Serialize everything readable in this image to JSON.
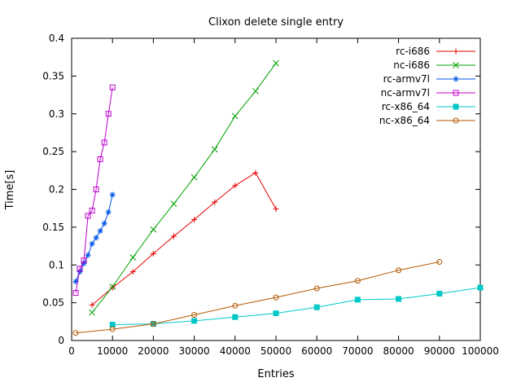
{
  "chart_data": {
    "type": "line",
    "title": "Clixon delete single entry",
    "xlabel": "Entries",
    "ylabel": "Time[s]",
    "xlim": [
      0,
      100000
    ],
    "ylim": [
      0,
      0.4
    ],
    "x_ticks": [
      0,
      10000,
      20000,
      30000,
      40000,
      50000,
      60000,
      70000,
      80000,
      90000,
      100000
    ],
    "x_tick_labels": [
      "0",
      "10000",
      "20000",
      "30000",
      "40000",
      "50000",
      "60000",
      "70000",
      "80000",
      "90000",
      "100000"
    ],
    "y_ticks": [
      0,
      0.05,
      0.1,
      0.15,
      0.2,
      0.25,
      0.3,
      0.35,
      0.4
    ],
    "y_tick_labels": [
      "0",
      "0.05",
      "0.1",
      "0.15",
      "0.2",
      "0.25",
      "0.3",
      "0.35",
      "0.4"
    ],
    "grid": false,
    "legend_position": "top-right-inside",
    "background_color": "#ffffff",
    "axis_color": "#000000",
    "series": [
      {
        "name": "rc-i686",
        "color": "#e60000",
        "marker": "plus",
        "x": [
          5000,
          10000,
          15000,
          20000,
          25000,
          30000,
          35000,
          40000,
          45000,
          50000
        ],
        "y": [
          0.047,
          0.07,
          0.091,
          0.115,
          0.138,
          0.16,
          0.183,
          0.205,
          0.222,
          0.174
        ]
      },
      {
        "name": "nc-i686",
        "color": "#00a000",
        "marker": "cross",
        "x": [
          5000,
          10000,
          15000,
          20000,
          25000,
          30000,
          35000,
          40000,
          45000,
          50000
        ],
        "y": [
          0.037,
          0.071,
          0.11,
          0.147,
          0.181,
          0.216,
          0.253,
          0.297,
          0.33,
          0.367
        ]
      },
      {
        "name": "rc-armv7l",
        "color": "#0055e6",
        "marker": "asterisk",
        "x": [
          1000,
          2000,
          3000,
          4000,
          5000,
          6000,
          7000,
          8000,
          9000,
          10000
        ],
        "y": [
          0.078,
          0.091,
          0.102,
          0.113,
          0.128,
          0.136,
          0.145,
          0.155,
          0.17,
          0.193
        ]
      },
      {
        "name": "nc-armv7l",
        "color": "#bb00cc",
        "marker": "square-open",
        "x": [
          1000,
          2000,
          3000,
          4000,
          5000,
          6000,
          7000,
          8000,
          9000,
          10000
        ],
        "y": [
          0.063,
          0.095,
          0.106,
          0.165,
          0.172,
          0.2,
          0.24,
          0.262,
          0.3,
          0.335
        ]
      },
      {
        "name": "rc-x86_64",
        "color": "#00c8c8",
        "marker": "square-filled",
        "x": [
          10000,
          20000,
          30000,
          40000,
          50000,
          60000,
          70000,
          80000,
          90000,
          100000
        ],
        "y": [
          0.021,
          0.022,
          0.026,
          0.031,
          0.036,
          0.044,
          0.054,
          0.055,
          0.062,
          0.07
        ]
      },
      {
        "name": "nc-x86_64",
        "color": "#b35900",
        "marker": "circle-open",
        "x": [
          1000,
          10000,
          20000,
          30000,
          40000,
          50000,
          60000,
          70000,
          80000,
          90000
        ],
        "y": [
          0.01,
          0.015,
          0.022,
          0.034,
          0.046,
          0.057,
          0.069,
          0.079,
          0.093,
          0.104
        ]
      }
    ]
  }
}
